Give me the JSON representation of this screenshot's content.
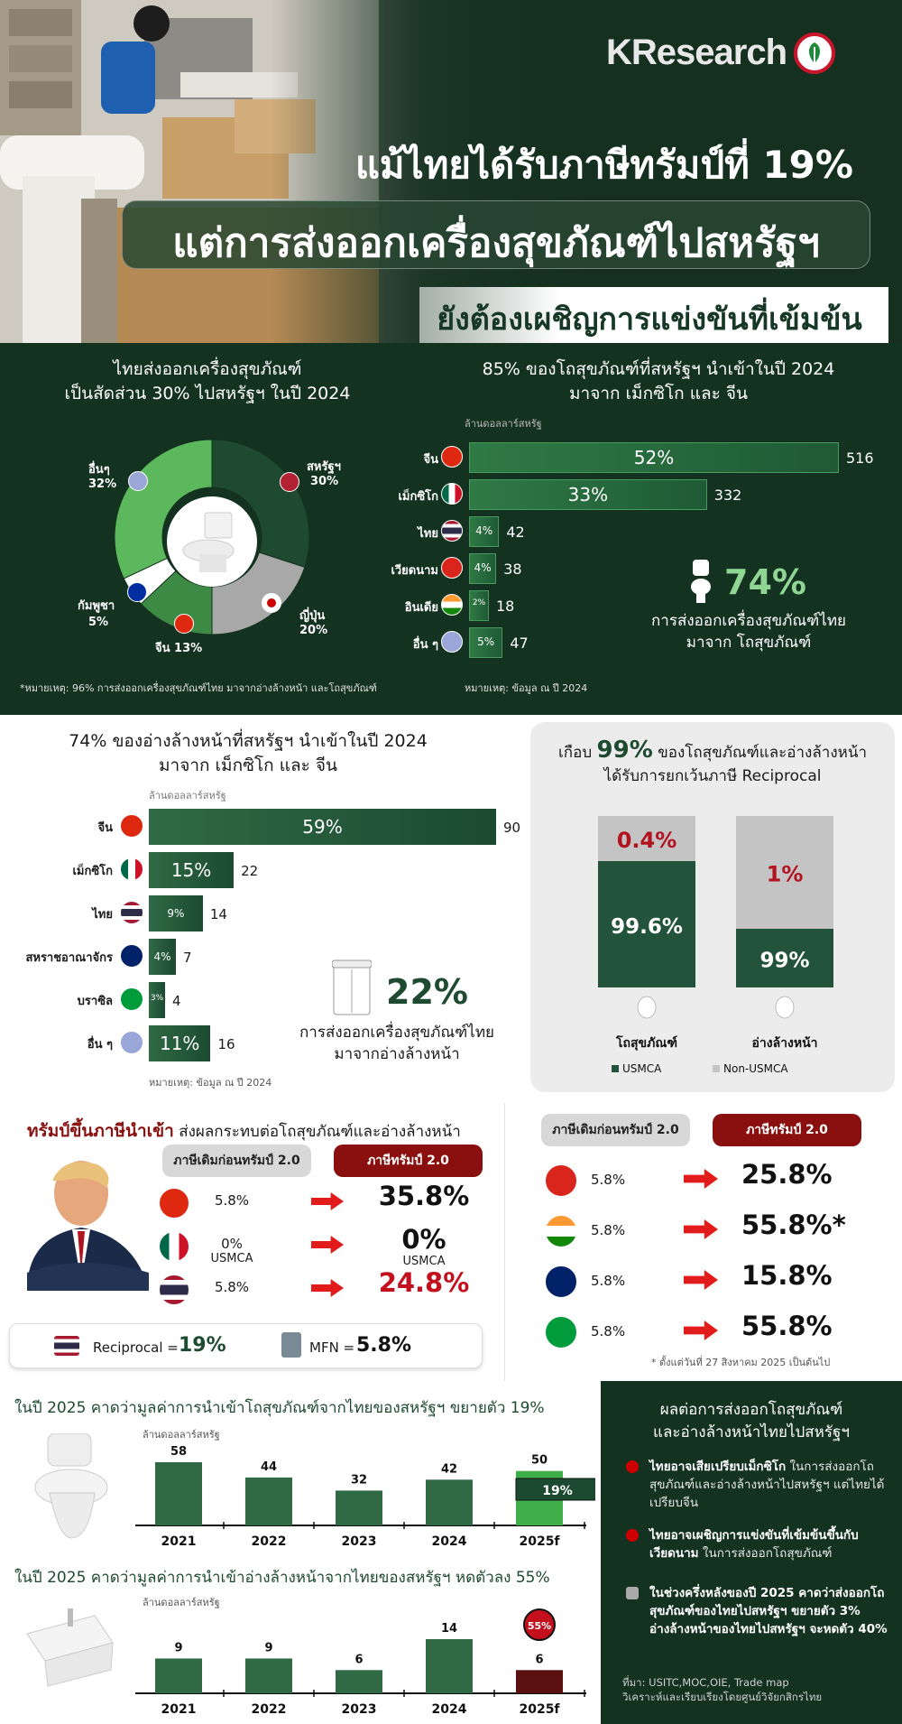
{
  "hero": {
    "logo": "KResearch",
    "title_line1": "แม้ไทยได้รับภาษีทรัมป์ที่ 19%",
    "title_line2": "แต่การส่งออกเครื่องสุขภัณฑ์ไปสหรัฐฯ",
    "title_line3": "ยังต้องเผชิญการแข่งขันที่เข้มข้น"
  },
  "share_panel": {
    "title_line1": "ไทยส่งออกเครื่องสุขภัณฑ์",
    "title_line2": "เป็นสัดส่วน 30% ไปสหรัฐฯ ในปี 2024",
    "note": "*หมายเหตุ: 96% การส่งออกเครื่องสุขภัณฑ์ไทย มาจากอ่างล้างหน้า และโถสุขภัณฑ์",
    "labels": [
      {
        "name": "สหรัฐฯ",
        "pct": "30%"
      },
      {
        "name": "ญี่ปุ่น",
        "pct": "20%"
      },
      {
        "name": "จีน",
        "pct": "13%"
      },
      {
        "name": "กัมพูชา",
        "pct": "5%"
      },
      {
        "name": "อื่นๆ",
        "pct": "32%"
      }
    ]
  },
  "toilet_panel": {
    "title_line1": "85% ของโถสุขภัณฑ์ที่สหรัฐฯ นำเข้าในปี 2024",
    "title_line2": "มาจาก เม็กซิโก และ จีน",
    "unit": "ล้านดอลลาร์สหรัฐ",
    "note": "หมายเหตุ: ข้อมูล ณ ปี 2024",
    "highlight": "74%",
    "highlight_line1": "การส่งออกเครื่องสุขภัณฑ์ไทย",
    "highlight_line2": "มาจาก โถสุขภัณฑ์"
  },
  "basin_panel": {
    "title_line1": "74% ของอ่างล้างหน้าที่สหรัฐฯ นำเข้าในปี 2024",
    "title_line2": "มาจาก เม็กซิโก และ จีน",
    "unit": "ล้านดอลลาร์สหรัฐ",
    "note": "หมายเหตุ: ข้อมูล ณ ปี 2024",
    "highlight": "22%",
    "highlight_line1": "การส่งออกเครื่องสุขภัณฑ์ไทย",
    "highlight_line2": "มาจากอ่างล้างหน้า"
  },
  "exempt_panel": {
    "title_prefix": "เกือบ",
    "title_num": "99%",
    "title_rest": "ของโถสุขภัณฑ์และอ่างล้างหน้า",
    "title_line2": "ได้รับการยกเว้นภาษี Reciprocal"
  },
  "tariff_panel": {
    "title_red": "ทรัมป์ขึ้นภาษีนำเข้า",
    "title_rest": "ส่งผลกระทบต่อโถสุขภัณฑ์และอ่างล้างหน้า",
    "before_label": "ภาษีเดิมก่อนทรัมป์ 2.0",
    "after_label": "ภาษีทรัมป์ 2.0",
    "rows_left": [
      {
        "flag": "china",
        "before": "5.8%",
        "before_sub": "",
        "after": "35.8%",
        "after_sub": "",
        "red": false
      },
      {
        "flag": "mexico",
        "before": "0%",
        "before_sub": "USMCA",
        "after": "0%",
        "after_sub": "USMCA",
        "red": false
      },
      {
        "flag": "thailand",
        "before": "5.8%",
        "before_sub": "",
        "after": "24.8%",
        "after_sub": "",
        "red": true
      }
    ],
    "rows_right": [
      {
        "flag": "vietnam",
        "before": "5.8%",
        "after": "25.8%"
      },
      {
        "flag": "india",
        "before": "5.8%",
        "after": "55.8%*"
      },
      {
        "flag": "uk",
        "before": "5.8%",
        "after": "15.8%"
      },
      {
        "flag": "brazil",
        "before": "5.8%",
        "after": "55.8%"
      }
    ],
    "reciprocal_label": "Reciprocal =",
    "reciprocal_value": "19%",
    "mfn_label": "MFN =",
    "mfn_value": "5.8%",
    "footnote": "* ตั้งแต่วันที่ 27 สิงหาคม 2025 เป็นต้นไป"
  },
  "forecast": {
    "toilet_title": "ในปี 2025 คาดว่ามูลค่าการนำเข้าโถสุขภัณฑ์จากไทยของสหรัฐฯ ขยายตัว 19%",
    "basin_title": "ในปี 2025 คาดว่ามูลค่าการนำเข้าอ่างล้างหน้าจากไทยของสหรัฐฯ หดตัวลง 55%",
    "unit": "ล้านดอลลาร์สหรัฐ",
    "toilet_badge": "19%",
    "basin_badge": "55%"
  },
  "effects": {
    "title_line1": "ผลต่อการส่งออกโถสุขภัณฑ์",
    "title_line2": "และอ่างล้างหน้าไทยไปสหรัฐฯ",
    "item1_bold": "ไทยอาจเสียเปรียบเม็กซิโก",
    "item1_rest": " ในการส่งออกโถสุขภัณฑ์และอ่างล้างหน้าไปสหรัฐฯ แต่ไทยได้เปรียบจีน",
    "item2_bold": "ไทยอาจเผชิญการแข่งขันที่เข้มข้นขึ้นกับเวียดนาม",
    "item2_rest": " ในการส่งออกโถสุขภัณฑ์",
    "item3_bold": "ในช่วงครึ่งหลังของปี 2025 คาดว่าส่งออกโถสุขภัณฑ์ของไทยไปสหรัฐฯ ขยายตัว 3% อ่างล้างหน้าของไทยไปสหรัฐฯ จะหดตัว 40%",
    "source_line1": "ที่มา: USITC,MOC,OIE, Trade map",
    "source_line2": "วิเคราะห์และเรียบเรียงโดยศูนย์วิจัยกสิกรไทย"
  },
  "colors": {
    "dark_green": "#143220",
    "bar_green": "#2d6a45",
    "red": "#8a1010",
    "grey": "#c8c8c8"
  },
  "chart_data": [
    {
      "type": "pie",
      "title": "ไทยส่งออกเครื่องสุขภัณฑ์เป็นสัดส่วน 30% ไปสหรัฐฯ ในปี 2024",
      "categories": [
        "สหรัฐฯ",
        "ญี่ปุ่น",
        "จีน",
        "กัมพูชา",
        "อื่นๆ"
      ],
      "values": [
        30,
        20,
        13,
        5,
        32
      ],
      "colors": [
        "#1e4a30",
        "#a8a8a8",
        "#3d8a45",
        "#ffffff",
        "#5cb85c"
      ]
    },
    {
      "type": "bar",
      "title": "85% ของโถสุขภัณฑ์ที่สหรัฐฯ นำเข้าในปี 2024",
      "ylabel": "ล้านดอลลาร์สหรัฐ",
      "categories": [
        "จีน",
        "เม็กซิโก",
        "ไทย",
        "เวียดนาม",
        "อินเดีย",
        "อื่น ๆ"
      ],
      "flags": [
        "china",
        "mexico",
        "thailand",
        "vietnam",
        "india",
        "globe"
      ],
      "values": [
        516,
        332,
        42,
        38,
        18,
        47
      ],
      "shares": [
        "52%",
        "33%",
        "4%",
        "4%",
        "2%",
        "5%"
      ],
      "orientation": "horizontal"
    },
    {
      "type": "bar",
      "title": "74% ของอ่างล้างหน้าที่สหรัฐฯ นำเข้าในปี 2024",
      "ylabel": "ล้านดอลลาร์สหรัฐ",
      "categories": [
        "จีน",
        "เม็กซิโก",
        "ไทย",
        "สหราชอาณาจักร",
        "บราซิล",
        "อื่น ๆ"
      ],
      "flags": [
        "china",
        "mexico",
        "thailand",
        "uk",
        "brazil",
        "globe"
      ],
      "values": [
        90,
        22,
        14,
        7,
        4,
        16
      ],
      "shares": [
        "59%",
        "15%",
        "9%",
        "4%",
        "3%",
        "11%"
      ],
      "orientation": "horizontal"
    },
    {
      "type": "bar",
      "stacked": true,
      "categories": [
        "โถสุขภัณฑ์",
        "อ่างล้างหน้า"
      ],
      "series": [
        {
          "name": "USMCA",
          "values": [
            99.6,
            99
          ],
          "labels": [
            "99.6%",
            "99%"
          ],
          "color": "#23533a"
        },
        {
          "name": "Non-USMCA",
          "values": [
            0.4,
            1
          ],
          "labels": [
            "0.4%",
            "1%"
          ],
          "color": "#c4c4c4"
        }
      ]
    },
    {
      "type": "bar",
      "ylabel": "ล้านดอลลาร์สหรัฐ",
      "categories": [
        "2021",
        "2022",
        "2023",
        "2024",
        "2025f"
      ],
      "values": [
        58,
        44,
        32,
        42,
        50
      ]
    },
    {
      "type": "bar",
      "ylabel": "ล้านดอลลาร์สหรัฐ",
      "categories": [
        "2021",
        "2022",
        "2023",
        "2024",
        "2025f"
      ],
      "values": [
        9,
        9,
        6,
        14,
        6
      ]
    }
  ]
}
